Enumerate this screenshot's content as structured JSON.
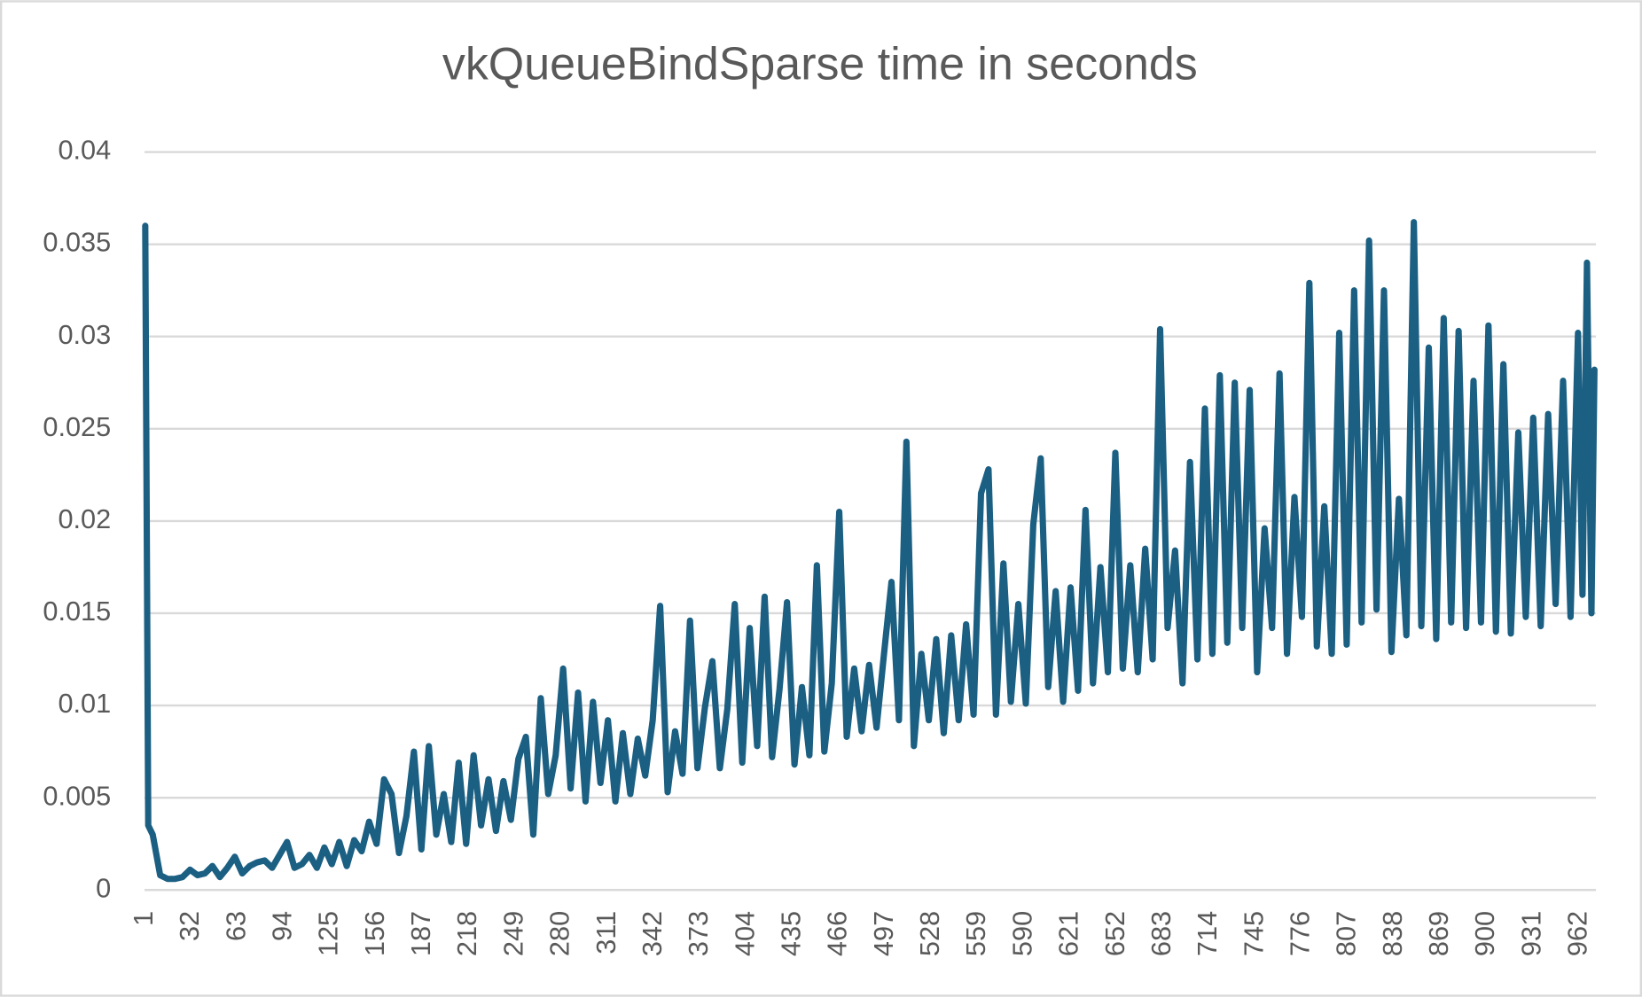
{
  "chart_data": {
    "type": "line",
    "title": "vkQueueBindSparse time in seconds",
    "color": "#1b5f82",
    "grid": true,
    "xlim": [
      0.5,
      973
    ],
    "ylim": [
      0,
      0.04
    ],
    "yticks": [
      0,
      0.005,
      0.01,
      0.015,
      0.02,
      0.025,
      0.03,
      0.035,
      0.04
    ],
    "xticks": [
      1,
      32,
      63,
      94,
      125,
      156,
      187,
      218,
      249,
      280,
      311,
      342,
      373,
      404,
      435,
      466,
      497,
      528,
      559,
      590,
      621,
      652,
      683,
      714,
      745,
      776,
      807,
      838,
      869,
      900,
      931,
      962
    ],
    "x": [
      1,
      3,
      6,
      11,
      16,
      21,
      26,
      31,
      36,
      41,
      46,
      51,
      56,
      61,
      66,
      71,
      76,
      81,
      86,
      91,
      96,
      101,
      106,
      111,
      116,
      121,
      126,
      131,
      136,
      141,
      146,
      151,
      156,
      161,
      166,
      171,
      176,
      181,
      186,
      191,
      196,
      201,
      206,
      211,
      216,
      221,
      226,
      231,
      236,
      241,
      246,
      251,
      256,
      261,
      266,
      271,
      276,
      281,
      286,
      291,
      296,
      301,
      306,
      311,
      316,
      321,
      326,
      331,
      336,
      341,
      346,
      351,
      356,
      361,
      366,
      371,
      376,
      381,
      386,
      391,
      396,
      401,
      406,
      411,
      416,
      421,
      426,
      431,
      436,
      441,
      446,
      451,
      456,
      461,
      466,
      471,
      476,
      481,
      486,
      491,
      496,
      501,
      506,
      511,
      516,
      521,
      526,
      531,
      536,
      541,
      546,
      551,
      556,
      561,
      566,
      571,
      576,
      581,
      586,
      591,
      596,
      601,
      606,
      611,
      616,
      621,
      626,
      631,
      636,
      641,
      646,
      651,
      656,
      661,
      666,
      671,
      676,
      681,
      686,
      691,
      696,
      701,
      706,
      711,
      716,
      721,
      726,
      731,
      736,
      741,
      746,
      751,
      756,
      761,
      766,
      771,
      776,
      781,
      786,
      791,
      796,
      801,
      806,
      811,
      816,
      821,
      826,
      831,
      836,
      841,
      846,
      851,
      856,
      861,
      866,
      871,
      876,
      881,
      886,
      891,
      896,
      901,
      906,
      911,
      916,
      921,
      926,
      931,
      936,
      941,
      946,
      951,
      956,
      961,
      964,
      967,
      970,
      972
    ],
    "values": [
      0.036,
      0.0035,
      0.003,
      0.0008,
      0.0006,
      0.0006,
      0.0007,
      0.0011,
      0.0008,
      0.0009,
      0.0013,
      0.0007,
      0.0012,
      0.0018,
      0.0009,
      0.0013,
      0.0015,
      0.0016,
      0.0012,
      0.0019,
      0.0026,
      0.0012,
      0.0014,
      0.0019,
      0.0012,
      0.0023,
      0.0014,
      0.0026,
      0.0013,
      0.0027,
      0.0021,
      0.0037,
      0.0025,
      0.006,
      0.0052,
      0.002,
      0.004,
      0.0075,
      0.0022,
      0.0078,
      0.003,
      0.0052,
      0.0026,
      0.0069,
      0.0025,
      0.0073,
      0.0035,
      0.006,
      0.0032,
      0.0059,
      0.0038,
      0.0071,
      0.0083,
      0.003,
      0.0104,
      0.0052,
      0.0073,
      0.012,
      0.0055,
      0.0107,
      0.0048,
      0.0102,
      0.0058,
      0.0092,
      0.0048,
      0.0085,
      0.0052,
      0.0082,
      0.0062,
      0.0092,
      0.0154,
      0.0053,
      0.0086,
      0.0063,
      0.0146,
      0.0066,
      0.0099,
      0.0124,
      0.0066,
      0.0098,
      0.0155,
      0.0069,
      0.0142,
      0.0078,
      0.0159,
      0.0072,
      0.0109,
      0.0156,
      0.0068,
      0.011,
      0.0073,
      0.0176,
      0.0075,
      0.0112,
      0.0205,
      0.0083,
      0.012,
      0.0086,
      0.0122,
      0.0088,
      0.0128,
      0.0167,
      0.0092,
      0.0243,
      0.0078,
      0.0128,
      0.0092,
      0.0136,
      0.0085,
      0.0138,
      0.0092,
      0.0144,
      0.0095,
      0.0215,
      0.0228,
      0.0095,
      0.0177,
      0.0102,
      0.0155,
      0.0101,
      0.0198,
      0.0234,
      0.011,
      0.0162,
      0.0102,
      0.0164,
      0.0108,
      0.0206,
      0.0112,
      0.0175,
      0.0118,
      0.0237,
      0.012,
      0.0176,
      0.0118,
      0.0185,
      0.0125,
      0.0304,
      0.0142,
      0.0184,
      0.0112,
      0.0232,
      0.0125,
      0.0261,
      0.0128,
      0.0279,
      0.0134,
      0.0275,
      0.0142,
      0.0271,
      0.0118,
      0.0196,
      0.0142,
      0.028,
      0.0128,
      0.0213,
      0.0148,
      0.0329,
      0.0132,
      0.0208,
      0.0128,
      0.0302,
      0.0133,
      0.0325,
      0.0145,
      0.0352,
      0.0152,
      0.0325,
      0.0129,
      0.0212,
      0.0138,
      0.0362,
      0.0143,
      0.0294,
      0.0136,
      0.031,
      0.0145,
      0.0303,
      0.0142,
      0.0276,
      0.0145,
      0.0306,
      0.014,
      0.0285,
      0.0139,
      0.0248,
      0.0148,
      0.0256,
      0.0143,
      0.0258,
      0.0155,
      0.0276,
      0.0148,
      0.0302,
      0.016,
      0.034,
      0.015,
      0.0282
    ]
  }
}
